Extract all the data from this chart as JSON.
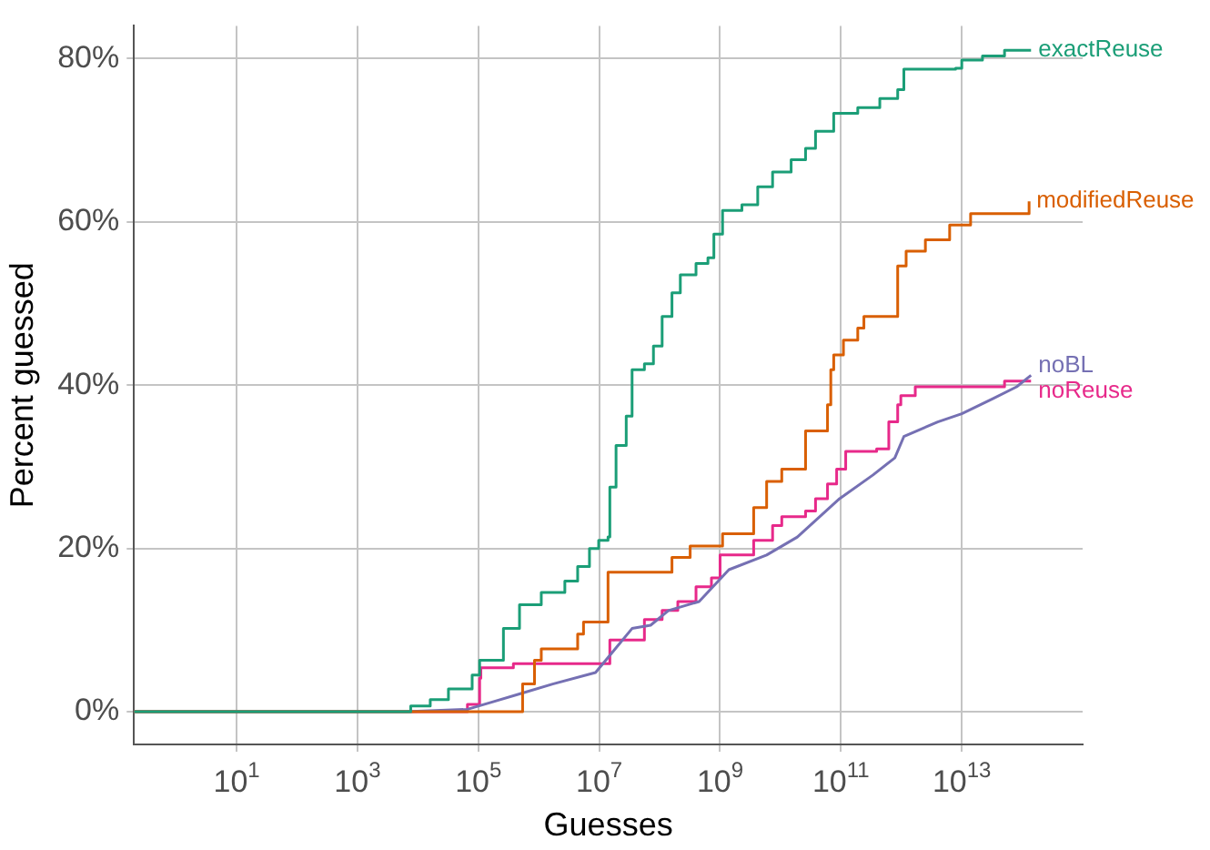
{
  "chart_data": {
    "type": "step",
    "xlabel": "Guesses",
    "ylabel": "Percent guessed",
    "log": "x",
    "grid": true,
    "legend": false,
    "marker": "none",
    "xlim": [
      0.2,
      1000000000000000.0
    ],
    "xticks": [
      {
        "value": 10,
        "label": "10$^{1}$"
      },
      {
        "value": 1000,
        "label": "10$^{3}$"
      },
      {
        "value": 100000,
        "label": "10$^{5}$"
      },
      {
        "value": 10000000,
        "label": "10$^{7}$"
      },
      {
        "value": 1000000000,
        "label": "10$^{9}$"
      },
      {
        "value": 100000000000,
        "label": "10$^{11}$"
      },
      {
        "value": 10000000000000,
        "label": "10$^{13}$"
      }
    ],
    "ylim": [
      -4,
      84
    ],
    "yticks": [
      {
        "value": 0,
        "label": "0%"
      },
      {
        "value": 20,
        "label": "20%"
      },
      {
        "value": 40,
        "label": "40%"
      },
      {
        "value": 60,
        "label": "60%"
      },
      {
        "value": 80,
        "label": "80%"
      }
    ],
    "series": [
      {
        "name": "exactReuse",
        "color": "#1b9e77",
        "x": [
          0.2,
          7600.0,
          16000.0,
          32000.0,
          79000.0,
          105000.0,
          260000.0,
          480000.0,
          1100000.0,
          2700000.0,
          4400000.0,
          6900000.0,
          9800000.0,
          14000000.0,
          15000000.0,
          19000000.0,
          28000000.0,
          35000000.0,
          56000000.0,
          79000000.0,
          110000000.0,
          160000000.0,
          220000000.0,
          400000000.0,
          630000000.0,
          790000000.0,
          1100000000.0,
          2300000000.0,
          4200000000.0,
          7400000000.0,
          15000000000.0,
          26000000000.0,
          38000000000.0,
          76000000000.0,
          190000000000.0,
          440000000000.0,
          870000000000.0,
          1100000000000.0,
          7900000000000.0,
          10000000000000.0,
          22000000000000.0,
          51000000000000.0,
          140000000000000.0
        ],
        "values": [
          0,
          0.7,
          1.5,
          2.8,
          4.5,
          6.3,
          10.2,
          13.1,
          14.6,
          16,
          17.8,
          20,
          21,
          21.4,
          27.5,
          32.6,
          36.2,
          41.9,
          42.6,
          44.8,
          48.4,
          51.3,
          53.5,
          54.9,
          55.6,
          58.5,
          61.4,
          62.1,
          64.3,
          66.1,
          67.6,
          69,
          71.1,
          73.3,
          74,
          75.1,
          76.2,
          78.7,
          78.8,
          79.8,
          80.3,
          81,
          81
        ]
      },
      {
        "name": "modifiedReuse",
        "color": "#d95f02",
        "x": [
          0.2,
          430000.0,
          540000.0,
          850000.0,
          1100000.0,
          4400000.0,
          5500000.0,
          14000000.0,
          160000000.0,
          320000000.0,
          1100000000.0,
          3600000000.0,
          5900000000.0,
          10500000000.0,
          26000000000.0,
          60000000000.0,
          68000000000.0,
          76000000000.0,
          110000000000.0,
          190000000000.0,
          240000000000.0,
          870000000000.0,
          1200000000000.0,
          2500000000000.0,
          6300000000000.0,
          14000000000000.0,
          130000000000000.0
        ],
        "values": [
          0,
          0,
          3.4,
          6.3,
          7.7,
          9.5,
          11,
          17.1,
          18.9,
          20.3,
          21.8,
          25,
          28.2,
          29.7,
          34.4,
          37.6,
          41.9,
          43.7,
          45.5,
          47,
          48.4,
          54.6,
          56.4,
          57.8,
          59.6,
          61,
          62.5
        ]
      },
      {
        "name": "noBL",
        "color": "#7570b3",
        "type": "line",
        "x": [
          0.2,
          6300.0,
          66000.0,
          170000.0,
          540000.0,
          1700000.0,
          8700000.0,
          17000000.0,
          35000000.0,
          71000000.0,
          140000000.0,
          450000000.0,
          1400000000.0,
          5900000000.0,
          19000000000.0,
          95000000000.0,
          340000000000.0,
          780000000000.0,
          1100000000000.0,
          4000000000000.0,
          10000000000000.0,
          32000000000000.0,
          81000000000000.0,
          140000000000000.0
        ],
        "values": [
          0,
          0,
          0.3,
          1.2,
          2.3,
          3.4,
          4.8,
          7.4,
          10.2,
          10.6,
          12.4,
          13.5,
          17.4,
          19.2,
          21.4,
          26.1,
          29,
          31.1,
          33.7,
          35.5,
          36.5,
          38.3,
          39.8,
          41.2
        ]
      },
      {
        "name": "noReuse",
        "color": "#e7298a",
        "x": [
          0.2,
          66000.0,
          105000.0,
          110000.0,
          380000.0,
          15000000.0,
          56000000.0,
          110000000.0,
          200000000.0,
          400000000.0,
          720000000.0,
          1000000000.0,
          3600000000.0,
          7400000000.0,
          10500000000.0,
          26000000000.0,
          38000000000.0,
          60000000000.0,
          85000000000.0,
          120000000000.0,
          390000000000.0,
          620000000000.0,
          870000000000.0,
          980000000000.0,
          1700000000000.0,
          51000000000000.0,
          140000000000000.0
        ],
        "values": [
          0,
          0.9,
          4.1,
          5.4,
          5.9,
          8.8,
          11.3,
          12.4,
          13.5,
          15.3,
          16.4,
          19.2,
          21,
          22.8,
          23.9,
          24.6,
          26.1,
          27.9,
          29.7,
          31.9,
          32.2,
          35.5,
          37.6,
          38.7,
          39.8,
          40.5,
          40.5
        ]
      }
    ]
  }
}
